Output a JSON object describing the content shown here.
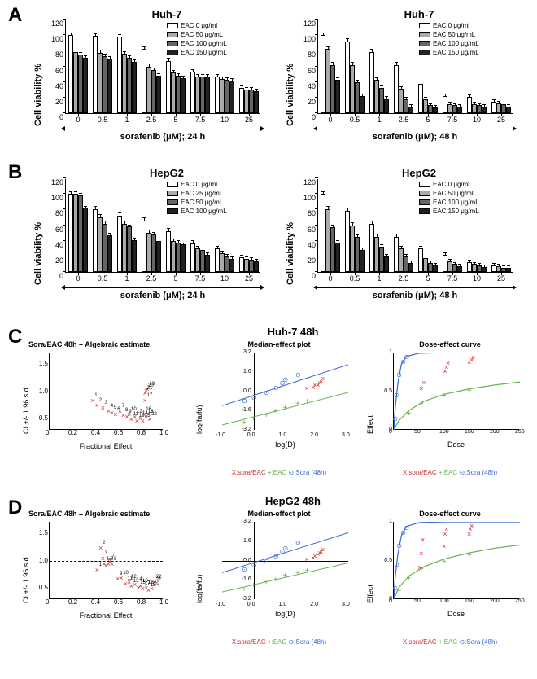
{
  "labels": {
    "A": "A",
    "B": "B",
    "C": "C",
    "D": "D"
  },
  "huh7_24": {
    "title": "Huh-7",
    "ylabel": "Cell viability %",
    "xlabel": "sorafenib (μM); 24 h",
    "xticks": [
      "0",
      "0.5",
      "1",
      "2.5",
      "5",
      "7.5",
      "10",
      "25"
    ],
    "yticks": [
      0,
      20,
      40,
      60,
      80,
      100,
      120
    ],
    "ylim": 120,
    "legend": [
      "EAC 0 μg/ml",
      "EAC 50 μg/mL",
      "EAC 100 μg/mL",
      "EAC 150 μg/mL"
    ],
    "colors": [
      "#ffffff",
      "#aaaaaa",
      "#666666",
      "#222222"
    ],
    "data": [
      [
        100,
        78,
        75,
        71
      ],
      [
        99,
        77,
        73,
        70
      ],
      [
        98,
        76,
        71,
        66
      ],
      [
        82,
        60,
        55,
        48
      ],
      [
        67,
        52,
        48,
        45
      ],
      [
        53,
        47,
        47,
        47
      ],
      [
        47,
        44,
        43,
        42
      ],
      [
        32,
        30,
        30,
        28
      ]
    ],
    "err": [
      [
        2,
        2,
        2,
        2
      ],
      [
        2,
        3,
        2,
        2
      ],
      [
        2,
        2,
        2,
        2
      ],
      [
        3,
        3,
        2,
        2
      ],
      [
        3,
        2,
        2,
        2
      ],
      [
        2,
        2,
        2,
        2
      ],
      [
        2,
        2,
        2,
        2
      ],
      [
        2,
        2,
        2,
        2
      ]
    ]
  },
  "huh7_48": {
    "title": "Huh-7",
    "ylabel": "Cell viability %",
    "xlabel": "sorafenib (μM); 48 h",
    "xticks": [
      "0",
      "0.5",
      "1",
      "2.5",
      "5",
      "7.5",
      "10",
      "25"
    ],
    "yticks": [
      0,
      20,
      40,
      60,
      80,
      100,
      120
    ],
    "ylim": 120,
    "legend": [
      "EAC 0 μg/ml",
      "EAC 50 μg/mL",
      "EAC 100 μg/mL",
      "EAC 150 μg/mL"
    ],
    "colors": [
      "#ffffff",
      "#aaaaaa",
      "#666666",
      "#222222"
    ],
    "data": [
      [
        100,
        82,
        62,
        43
      ],
      [
        92,
        62,
        40,
        22
      ],
      [
        78,
        43,
        32,
        19
      ],
      [
        62,
        31,
        18,
        8
      ],
      [
        38,
        18,
        10,
        7
      ],
      [
        22,
        12,
        10,
        8
      ],
      [
        21,
        12,
        10,
        8
      ],
      [
        15,
        13,
        11,
        8
      ]
    ],
    "err": [
      [
        2,
        3,
        3,
        2
      ],
      [
        3,
        3,
        2,
        2
      ],
      [
        3,
        2,
        2,
        2
      ],
      [
        3,
        2,
        2,
        2
      ],
      [
        3,
        2,
        2,
        2
      ],
      [
        2,
        2,
        2,
        2
      ],
      [
        2,
        2,
        2,
        2
      ],
      [
        2,
        2,
        2,
        2
      ]
    ]
  },
  "hepg2_24": {
    "title": "HepG2",
    "ylabel": "Cell viability %",
    "xlabel": "sorafenib (μM); 24 h",
    "xticks": [
      "0",
      "0.5",
      "1",
      "2.5",
      "5",
      "7.5",
      "10",
      "25"
    ],
    "yticks": [
      0,
      20,
      40,
      60,
      80,
      100,
      120
    ],
    "ylim": 120,
    "legend": [
      "EAC 0 μg/ml",
      "EAC 25 μg/mL",
      "EAC 50 μg/mL",
      "EAC 100 μg/mL"
    ],
    "colors": [
      "#ffffff",
      "#aaaaaa",
      "#666666",
      "#222222"
    ],
    "data": [
      [
        100,
        100,
        98,
        82
      ],
      [
        80,
        70,
        62,
        47
      ],
      [
        72,
        62,
        58,
        41
      ],
      [
        66,
        50,
        48,
        40
      ],
      [
        52,
        40,
        38,
        35
      ],
      [
        37,
        30,
        28,
        22
      ],
      [
        30,
        24,
        20,
        17
      ],
      [
        19,
        17,
        16,
        14
      ]
    ],
    "err": [
      [
        2,
        2,
        2,
        2
      ],
      [
        3,
        3,
        3,
        2
      ],
      [
        3,
        3,
        2,
        2
      ],
      [
        3,
        3,
        2,
        2
      ],
      [
        3,
        2,
        2,
        2
      ],
      [
        3,
        2,
        2,
        2
      ],
      [
        2,
        2,
        2,
        2
      ],
      [
        2,
        2,
        2,
        2
      ]
    ]
  },
  "hepg2_48": {
    "title": "HepG2",
    "ylabel": "Cell viability %",
    "xlabel": "sorafenib (μM); 48 h",
    "xticks": [
      "0",
      "0.5",
      "1",
      "2.5",
      "5",
      "7.5",
      "10",
      "25"
    ],
    "yticks": [
      0,
      20,
      40,
      60,
      80,
      100,
      120
    ],
    "ylim": 120,
    "legend": [
      "EAC 0 μg/ml",
      "EAC 50 μg/mL",
      "EAC 100 μg/mL",
      "EAC 150 μg/mL"
    ],
    "colors": [
      "#ffffff",
      "#aaaaaa",
      "#666666",
      "#222222"
    ],
    "data": [
      [
        100,
        80,
        57,
        38
      ],
      [
        78,
        60,
        45,
        28
      ],
      [
        62,
        45,
        32,
        20
      ],
      [
        45,
        30,
        20,
        12
      ],
      [
        30,
        18,
        12,
        8
      ],
      [
        22,
        14,
        10,
        7
      ],
      [
        13,
        10,
        8,
        6
      ],
      [
        8,
        7,
        5,
        5
      ]
    ],
    "err": [
      [
        2,
        3,
        3,
        2
      ],
      [
        3,
        3,
        2,
        2
      ],
      [
        3,
        3,
        2,
        2
      ],
      [
        3,
        2,
        2,
        2
      ],
      [
        2,
        2,
        2,
        2
      ],
      [
        2,
        2,
        2,
        2
      ],
      [
        2,
        2,
        2,
        2
      ],
      [
        2,
        2,
        2,
        2
      ]
    ]
  },
  "panelC": {
    "title": "Huh-7 48h",
    "ci": {
      "title": "Sora/EAC 48h – Algebraic estimate",
      "ylabel": "CI +/- 1.96 s.d.",
      "xlabel": "Fractional Effect",
      "yticks": [
        "0.5",
        "1.0",
        "1.5"
      ],
      "xticks": [
        "0",
        "0.2",
        "0.4",
        "0.6",
        "0.8",
        "1.0"
      ],
      "xlim": [
        0,
        1
      ],
      "ylim": [
        0.3,
        1.7
      ],
      "ref": 1.0,
      "points": [
        [
          0.38,
          0.85
        ],
        [
          0.42,
          0.75
        ],
        [
          0.47,
          0.72
        ],
        [
          0.52,
          0.65
        ],
        [
          0.55,
          0.62
        ],
        [
          0.58,
          0.6
        ],
        [
          0.62,
          0.65
        ],
        [
          0.65,
          0.58
        ],
        [
          0.68,
          0.55
        ],
        [
          0.7,
          0.6
        ],
        [
          0.72,
          0.5
        ],
        [
          0.75,
          0.55
        ],
        [
          0.77,
          0.48
        ],
        [
          0.8,
          0.52
        ],
        [
          0.82,
          0.48
        ],
        [
          0.83,
          0.6
        ],
        [
          0.84,
          0.85
        ],
        [
          0.85,
          0.55
        ],
        [
          0.86,
          1.05
        ],
        [
          0.85,
          1.02
        ],
        [
          0.84,
          0.98
        ],
        [
          0.88,
          0.5
        ]
      ]
    },
    "me": {
      "title": "Median-effect plot",
      "ylabel": "log(fa/fu)",
      "xlabel": "log(D)",
      "xlim": [
        -1,
        3
      ],
      "ylim": [
        -3.2,
        3.2
      ],
      "xticks": [
        "-1.0",
        "0.0",
        "1.0",
        "2.0",
        "3.0"
      ],
      "yticks": [
        "-3.2",
        "-1.6",
        "0.0",
        "1.6",
        "3.2"
      ],
      "lines": {
        "green": [
          [
            -1,
            -2.8
          ],
          [
            3,
            -0.1
          ]
        ],
        "blue": [
          [
            -1,
            -1.2
          ],
          [
            3,
            2.2
          ]
        ]
      },
      "redpts": [
        [
          1.7,
          0.3
        ],
        [
          1.9,
          0.35
        ],
        [
          1.95,
          0.55
        ],
        [
          2.05,
          0.6
        ],
        [
          2.1,
          0.8
        ],
        [
          2.15,
          0.85
        ],
        [
          2.2,
          1.1
        ]
      ],
      "bluepts": [
        [
          -0.3,
          -0.8
        ],
        [
          0.0,
          -0.5
        ],
        [
          0.4,
          -0.1
        ],
        [
          0.7,
          0.3
        ],
        [
          0.9,
          0.7
        ],
        [
          1.0,
          1.0
        ],
        [
          1.4,
          1.4
        ]
      ],
      "greenpts": [
        [
          -0.3,
          -2.5
        ],
        [
          0.0,
          -2.2
        ],
        [
          0.4,
          -1.9
        ],
        [
          0.7,
          -1.6
        ],
        [
          1.0,
          -1.3
        ],
        [
          1.4,
          -1.0
        ],
        [
          1.7,
          -0.8
        ]
      ]
    },
    "de": {
      "title": "Dose-effect curve",
      "ylabel": "Effect",
      "xlabel": "Dose",
      "xlim": [
        0,
        250
      ],
      "ylim": [
        0,
        1
      ],
      "xticks": [
        "0",
        "50",
        "100",
        "150",
        "200",
        "250"
      ],
      "yticks": [
        "0",
        "0.5",
        "1"
      ],
      "green": [
        [
          0,
          0.0
        ],
        [
          10,
          0.12
        ],
        [
          30,
          0.25
        ],
        [
          60,
          0.37
        ],
        [
          100,
          0.46
        ],
        [
          150,
          0.53
        ],
        [
          200,
          0.58
        ],
        [
          250,
          0.62
        ]
      ],
      "blue": [
        [
          0,
          0.0
        ],
        [
          3,
          0.3
        ],
        [
          8,
          0.6
        ],
        [
          15,
          0.85
        ],
        [
          25,
          0.95
        ],
        [
          50,
          0.99
        ],
        [
          100,
          1.0
        ],
        [
          250,
          1.0
        ]
      ],
      "redpts": [
        [
          55,
          0.55
        ],
        [
          60,
          0.62
        ],
        [
          102,
          0.77
        ],
        [
          105,
          0.82
        ],
        [
          108,
          0.87
        ],
        [
          150,
          0.88
        ],
        [
          155,
          0.92
        ],
        [
          158,
          0.95
        ]
      ],
      "greenpts": [
        [
          10,
          0.1
        ],
        [
          30,
          0.22
        ],
        [
          55,
          0.35
        ],
        [
          100,
          0.45
        ],
        [
          150,
          0.52
        ]
      ],
      "bluepts": [
        [
          2,
          0.15
        ],
        [
          5,
          0.45
        ],
        [
          10,
          0.72
        ],
        [
          18,
          0.88
        ],
        [
          25,
          0.95
        ]
      ]
    },
    "legend": "X:sora/EAC  +:EAC  ⊙:Sora (48h)"
  },
  "panelD": {
    "title": "HepG2 48h",
    "ci": {
      "title": "Sora/EAC 48h – Algebraic estimate",
      "ylabel": "CI +/- 1.96 s.d.",
      "xlabel": "Fractional Effect",
      "yticks": [
        "0.5",
        "1.0",
        "1.5"
      ],
      "xticks": [
        "0",
        "0.2",
        "0.4",
        "0.6",
        "0.8",
        "1.0"
      ],
      "xlim": [
        0,
        1
      ],
      "ylim": [
        0.3,
        1.7
      ],
      "ref": 1.0,
      "points": [
        [
          0.42,
          0.85
        ],
        [
          0.45,
          1.25
        ],
        [
          0.47,
          1.05
        ],
        [
          0.48,
          0.95
        ],
        [
          0.5,
          0.92
        ],
        [
          0.52,
          0.95
        ],
        [
          0.53,
          1.0
        ],
        [
          0.55,
          0.95
        ],
        [
          0.6,
          0.68
        ],
        [
          0.63,
          0.7
        ],
        [
          0.67,
          0.6
        ],
        [
          0.7,
          0.62
        ],
        [
          0.72,
          0.55
        ],
        [
          0.75,
          0.58
        ],
        [
          0.78,
          0.52
        ],
        [
          0.8,
          0.55
        ],
        [
          0.82,
          0.5
        ],
        [
          0.85,
          0.52
        ],
        [
          0.87,
          0.48
        ],
        [
          0.9,
          0.5
        ],
        [
          0.92,
          0.58
        ],
        [
          0.92,
          0.62
        ]
      ]
    },
    "me": {
      "title": "Median-effect plot",
      "ylabel": "log(fa/fu)",
      "xlabel": "log(D)",
      "xlim": [
        -1,
        3
      ],
      "ylim": [
        -3.2,
        3.2
      ],
      "xticks": [
        "-1.0",
        "0.0",
        "1.0",
        "2.0",
        "3.0"
      ],
      "yticks": [
        "-3.2",
        "-1.6",
        "0.0",
        "1.6",
        "3.2"
      ],
      "lines": {
        "green": [
          [
            -1,
            -2.6
          ],
          [
            3,
            -0.2
          ]
        ],
        "blue": [
          [
            -1,
            -1.0
          ],
          [
            3,
            2.3
          ]
        ]
      },
      "redpts": [
        [
          1.7,
          0.2
        ],
        [
          1.9,
          0.3
        ],
        [
          1.95,
          0.45
        ],
        [
          2.05,
          0.55
        ],
        [
          2.1,
          0.7
        ],
        [
          2.15,
          0.8
        ],
        [
          2.2,
          0.95
        ]
      ],
      "bluepts": [
        [
          -0.3,
          -0.7
        ],
        [
          0.0,
          -0.4
        ],
        [
          0.4,
          0.0
        ],
        [
          0.7,
          0.35
        ],
        [
          0.9,
          0.75
        ],
        [
          1.0,
          1.05
        ],
        [
          1.4,
          1.5
        ]
      ],
      "greenpts": [
        [
          -0.3,
          -2.3
        ],
        [
          0.0,
          -2.0
        ],
        [
          0.4,
          -1.7
        ],
        [
          0.7,
          -1.5
        ],
        [
          1.0,
          -1.2
        ],
        [
          1.4,
          -0.95
        ],
        [
          1.7,
          -0.75
        ]
      ]
    },
    "de": {
      "title": "Dose-effect curve",
      "ylabel": "Effect",
      "xlabel": "Dose",
      "xlim": [
        0,
        250
      ],
      "ylim": [
        0,
        1
      ],
      "xticks": [
        "0",
        "50",
        "100",
        "150",
        "200",
        "250"
      ],
      "yticks": [
        "0",
        "0.5",
        "1"
      ],
      "green": [
        [
          0,
          0.0
        ],
        [
          10,
          0.15
        ],
        [
          30,
          0.3
        ],
        [
          60,
          0.42
        ],
        [
          100,
          0.52
        ],
        [
          150,
          0.6
        ],
        [
          200,
          0.66
        ],
        [
          250,
          0.7
        ]
      ],
      "blue": [
        [
          0,
          0.0
        ],
        [
          3,
          0.3
        ],
        [
          8,
          0.58
        ],
        [
          15,
          0.82
        ],
        [
          25,
          0.94
        ],
        [
          50,
          0.99
        ],
        [
          100,
          1.0
        ],
        [
          250,
          1.0
        ]
      ],
      "redpts": [
        [
          52,
          0.42
        ],
        [
          55,
          0.6
        ],
        [
          58,
          0.78
        ],
        [
          100,
          0.7
        ],
        [
          102,
          0.85
        ],
        [
          105,
          0.92
        ],
        [
          150,
          0.85
        ],
        [
          152,
          0.92
        ],
        [
          155,
          0.96
        ]
      ],
      "greenpts": [
        [
          10,
          0.12
        ],
        [
          30,
          0.28
        ],
        [
          55,
          0.4
        ],
        [
          100,
          0.5
        ],
        [
          150,
          0.58
        ]
      ],
      "bluepts": [
        [
          2,
          0.15
        ],
        [
          5,
          0.45
        ],
        [
          10,
          0.7
        ],
        [
          18,
          0.86
        ],
        [
          25,
          0.93
        ]
      ]
    },
    "legend": "X:sora/EAC  +:EAC  ⊙:Sora (48h)"
  },
  "colors": {
    "red": "#cc2e2e",
    "green": "#6ab04c",
    "blue": "#3867d6"
  }
}
